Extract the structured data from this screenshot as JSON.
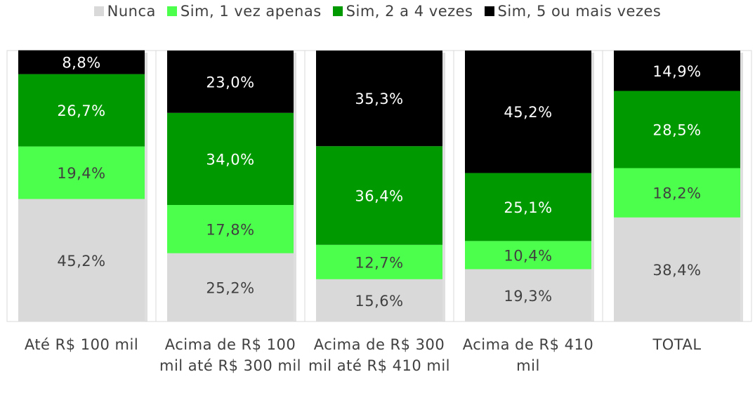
{
  "chart_data": {
    "type": "stacked-bar",
    "categories": [
      "Até R$ 100 mil",
      "Acima de R$ 100 mil até R$ 300 mil",
      "Acima de R$ 300 mil até R$ 410 mil",
      "Acima de R$ 410 mil",
      "TOTAL"
    ],
    "series": [
      {
        "name": "Nunca",
        "color": "#d9d9d9",
        "values": [
          45.2,
          25.2,
          15.6,
          19.3,
          38.4
        ],
        "value_labels": [
          "45,2%",
          "25,2%",
          "15,6%",
          "19,3%",
          "38,4%"
        ]
      },
      {
        "name": "Sim, 1 vez apenas",
        "color": "#4dff4d",
        "values": [
          19.4,
          17.8,
          12.7,
          10.4,
          18.2
        ],
        "value_labels": [
          "19,4%",
          "17,8%",
          "12,7%",
          "10,4%",
          "18,2%"
        ]
      },
      {
        "name": "Sim, 2 a 4 vezes",
        "color": "#009900",
        "values": [
          26.7,
          34.0,
          36.4,
          25.1,
          28.5
        ],
        "value_labels": [
          "26,7%",
          "34,0%",
          "36,4%",
          "25,1%",
          "28,5%"
        ]
      },
      {
        "name": "Sim, 5 ou mais vezes",
        "color": "#000000",
        "values": [
          8.8,
          23.0,
          35.3,
          45.2,
          14.9
        ],
        "value_labels": [
          "8,8%",
          "23,0%",
          "35,3%",
          "45,2%",
          "14,9%"
        ]
      }
    ],
    "ylim": [
      0,
      100
    ]
  }
}
